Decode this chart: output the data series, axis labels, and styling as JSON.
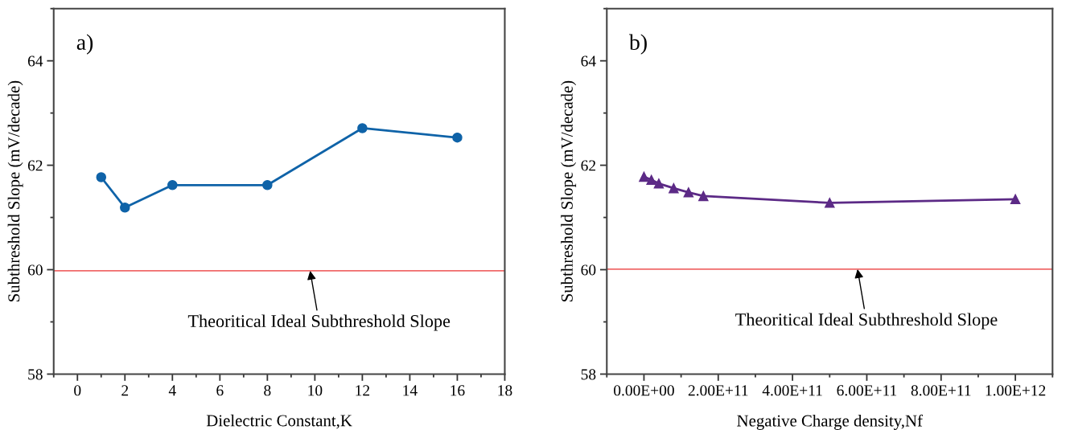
{
  "chart_data": [
    {
      "type": "line",
      "xlabel": "Dielectric Constant,K",
      "ylabel": "Subthreshold Slope (mV/decade)",
      "x": [
        1,
        2,
        4,
        8,
        12,
        16
      ],
      "series": [
        {
          "color": "#0f63a8",
          "values": [
            61.77,
            61.19,
            61.62,
            61.62,
            62.71,
            62.53
          ]
        }
      ],
      "marker": "circle",
      "line_style": "solid",
      "xlim": [
        -1,
        18
      ],
      "xticks": [
        0,
        2,
        4,
        6,
        8,
        10,
        12,
        14,
        16,
        18
      ],
      "ylim": [
        58,
        65
      ],
      "yticks": [
        58,
        60,
        62,
        64
      ],
      "grid": false,
      "legend": false,
      "ref_lines": [
        {
          "axis": "y",
          "value": 59.98,
          "color": "#f06a6a"
        }
      ],
      "annotations": [
        "a)",
        {
          "text": "Theoritical Ideal Subthreshold Slope",
          "x": 9.8,
          "y": 59.98
        }
      ]
    },
    {
      "type": "line",
      "xlabel": "Negative Charge density,Nf",
      "ylabel": "Subthreshold Slope (mV/decade)",
      "x": [
        0,
        20000000000.0,
        40000000000.0,
        80000000000.0,
        120000000000.0,
        160000000000.0,
        500000000000.0,
        1000000000000.0
      ],
      "series": [
        {
          "color": "#5c2a86",
          "values": [
            61.78,
            61.72,
            61.65,
            61.56,
            61.48,
            61.41,
            61.28,
            61.35
          ]
        }
      ],
      "marker": "triangle",
      "line_style": "solid",
      "xlim": [
        -100000000000.0,
        1100000000000.0
      ],
      "xticks": [
        {
          "value": 0,
          "label": "0.00E+00"
        },
        {
          "value": 200000000000.0,
          "label": "2.00E+11"
        },
        {
          "value": 400000000000.0,
          "label": "4.00E+11"
        },
        {
          "value": 600000000000.0,
          "label": "6.00E+11"
        },
        {
          "value": 800000000000.0,
          "label": "8.00E+11"
        },
        {
          "value": 1000000000000.0,
          "label": "1.00E+12"
        }
      ],
      "ylim": [
        58,
        65
      ],
      "yticks": [
        58,
        60,
        62,
        64
      ],
      "grid": false,
      "legend": false,
      "ref_lines": [
        {
          "axis": "y",
          "value": 60.01,
          "color": "#f06a6a"
        }
      ],
      "annotations": [
        "b)",
        {
          "text": "Theoritical Ideal Subthreshold Slope",
          "x": 575000000000.0,
          "y": 60.01
        }
      ]
    }
  ]
}
